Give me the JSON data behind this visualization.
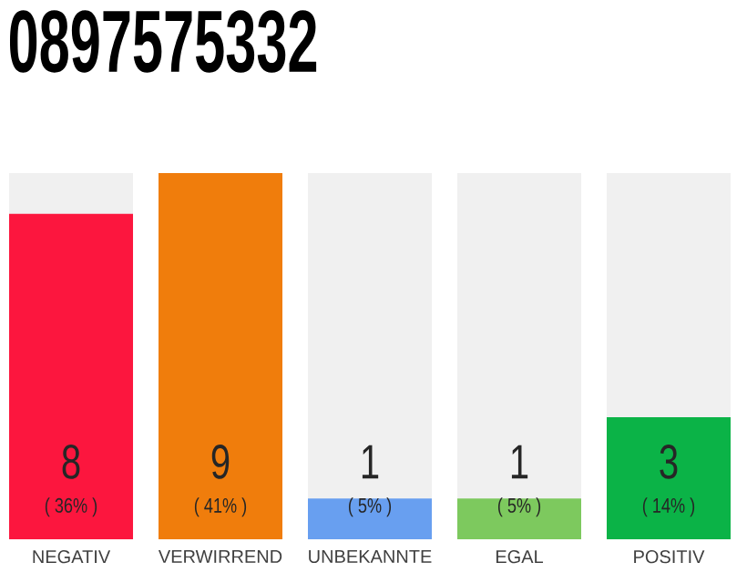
{
  "chart_data": {
    "type": "bar",
    "title": "0897575332",
    "categories": [
      "NEGATIV",
      "VERWIRREND",
      "UNBEKANNTE",
      "EGAL",
      "POSITIV"
    ],
    "values": [
      8,
      9,
      1,
      1,
      3
    ],
    "colors": [
      "#fc163e",
      "#f07d0c",
      "#689ff0",
      "#7dc95e",
      "#0bb347"
    ],
    "ylim": [
      0,
      9
    ],
    "data_labels": true,
    "annotations": [
      "( 36% )",
      "( 41% )",
      "( 5% )",
      "( 5% )",
      "( 14% )"
    ]
  }
}
